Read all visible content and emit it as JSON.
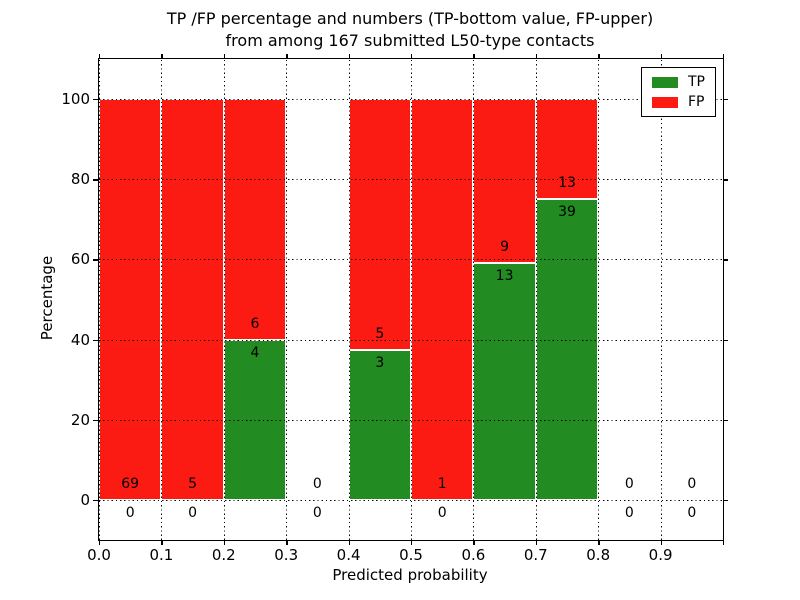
{
  "chart_data": {
    "type": "bar",
    "stacked": true,
    "title": "TP /FP percentage and numbers (TP-bottom value, FP-upper)",
    "subtitle": "from among 167 submitted L50-type contacts",
    "xlabel": "Predicted probability",
    "ylabel": "Percentage",
    "total_contacts": 167,
    "xlim": [
      0.0,
      1.0
    ],
    "ylim": [
      -10,
      110
    ],
    "yticks": [
      0,
      20,
      40,
      60,
      80,
      100
    ],
    "xticks": [
      "0.0",
      "0.1",
      "0.2",
      "0.3",
      "0.4",
      "0.5",
      "0.6",
      "0.7",
      "0.8",
      "0.9"
    ],
    "grid": "dotted",
    "bins": [
      {
        "range": [
          0.0,
          0.1
        ],
        "tp": 0,
        "fp": 69,
        "tp_percent": 0,
        "fp_percent": 100
      },
      {
        "range": [
          0.1,
          0.2
        ],
        "tp": 0,
        "fp": 5,
        "tp_percent": 0,
        "fp_percent": 100
      },
      {
        "range": [
          0.2,
          0.3
        ],
        "tp": 4,
        "fp": 6,
        "tp_percent": 40,
        "fp_percent": 60
      },
      {
        "range": [
          0.3,
          0.4
        ],
        "tp": 0,
        "fp": 0,
        "tp_percent": 0,
        "fp_percent": 0
      },
      {
        "range": [
          0.4,
          0.5
        ],
        "tp": 3,
        "fp": 5,
        "tp_percent": 37.5,
        "fp_percent": 62.5
      },
      {
        "range": [
          0.5,
          0.6
        ],
        "tp": 0,
        "fp": 1,
        "tp_percent": 0,
        "fp_percent": 100
      },
      {
        "range": [
          0.6,
          0.7
        ],
        "tp": 13,
        "fp": 9,
        "tp_percent": 59.09,
        "fp_percent": 40.91
      },
      {
        "range": [
          0.7,
          0.8
        ],
        "tp": 39,
        "fp": 13,
        "tp_percent": 75,
        "fp_percent": 25
      },
      {
        "range": [
          0.8,
          0.9
        ],
        "tp": 0,
        "fp": 0,
        "tp_percent": 0,
        "fp_percent": 0
      },
      {
        "range": [
          0.9,
          1.0
        ],
        "tp": 0,
        "fp": 0,
        "tp_percent": 0,
        "fp_percent": 0
      }
    ],
    "legend": {
      "position": "upper right",
      "items": [
        {
          "label": "TP",
          "color": "#228b22"
        },
        {
          "label": "FP",
          "color": "#fb1b13"
        }
      ]
    }
  }
}
